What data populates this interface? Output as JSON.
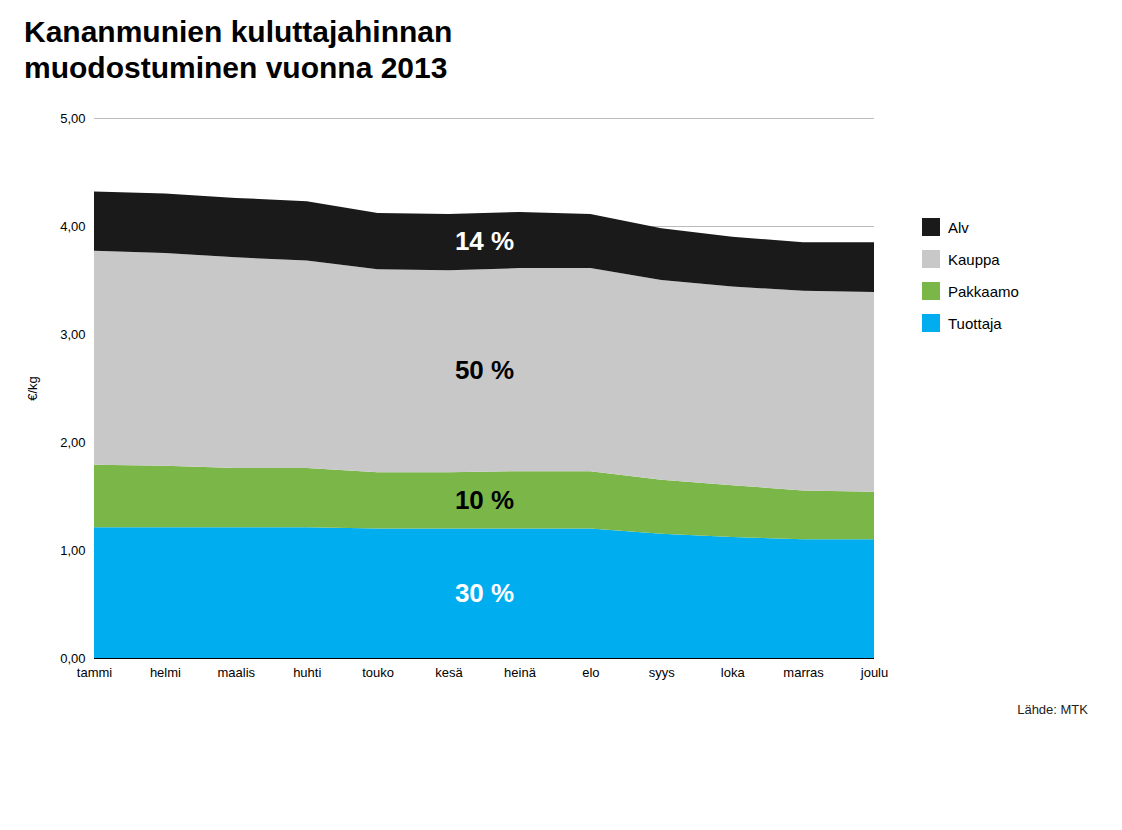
{
  "chart_data": {
    "type": "area",
    "stacked": true,
    "title": "Kananmunien kuluttajahinnan",
    "subtitle": "muodostuminen vuonna 2013",
    "caption": "Lähde: MTK",
    "ylabel": "€/kg",
    "categories": [
      "tammi",
      "helmi",
      "maalis",
      "huhti",
      "touko",
      "kesä",
      "heinä",
      "elo",
      "syys",
      "loka",
      "marras",
      "joulu"
    ],
    "series": [
      {
        "name": "Tuottaja",
        "color": "#00aeef",
        "values": [
          1.21,
          1.21,
          1.21,
          1.21,
          1.2,
          1.2,
          1.2,
          1.2,
          1.15,
          1.12,
          1.1,
          1.1
        ]
      },
      {
        "name": "Pakkaamo",
        "color": "#7ab648",
        "values": [
          0.58,
          0.57,
          0.55,
          0.55,
          0.52,
          0.52,
          0.53,
          0.53,
          0.5,
          0.48,
          0.45,
          0.44
        ]
      },
      {
        "name": "Kauppa",
        "color": "#c8c8c8",
        "values": [
          1.98,
          1.97,
          1.95,
          1.92,
          1.88,
          1.87,
          1.88,
          1.88,
          1.85,
          1.84,
          1.85,
          1.85
        ]
      },
      {
        "name": "Alv",
        "color": "#1a1a1a",
        "values": [
          0.55,
          0.55,
          0.55,
          0.55,
          0.52,
          0.52,
          0.52,
          0.5,
          0.48,
          0.46,
          0.45,
          0.46
        ]
      }
    ],
    "annotations": [
      {
        "text": "30 %",
        "series": "Tuottaja",
        "color": "white"
      },
      {
        "text": "10 %",
        "series": "Pakkaamo",
        "color": "black"
      },
      {
        "text": "50 %",
        "series": "Kauppa",
        "color": "black"
      },
      {
        "text": "14 %",
        "series": "Alv",
        "color": "white"
      }
    ],
    "ylim": [
      0,
      5.0
    ],
    "yticks": [
      {
        "value": 0.0,
        "label": "0,00"
      },
      {
        "value": 1.0,
        "label": "1,00"
      },
      {
        "value": 2.0,
        "label": "2,00"
      },
      {
        "value": 3.0,
        "label": "3,00"
      },
      {
        "value": 4.0,
        "label": "4,00"
      },
      {
        "value": 5.0,
        "label": "5,00"
      }
    ],
    "grid": true,
    "legend": "right"
  }
}
